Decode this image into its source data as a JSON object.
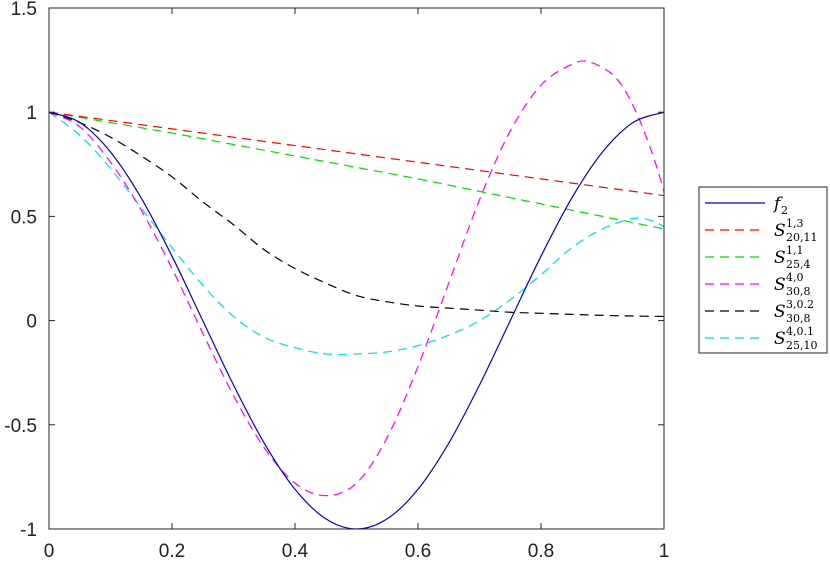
{
  "chart_data": {
    "type": "line",
    "title": "",
    "xlabel": "",
    "ylabel": "",
    "xlim": [
      0,
      1
    ],
    "ylim": [
      -1,
      1.5
    ],
    "xticks": [
      0,
      0.2,
      0.4,
      0.6,
      0.8,
      1
    ],
    "xtick_labels": [
      "0",
      "0.2",
      "0.4",
      "0.6",
      "0.8",
      "1"
    ],
    "yticks": [
      -1,
      -0.5,
      0,
      0.5,
      1,
      1.5
    ],
    "ytick_labels": [
      "-1",
      "-0.5",
      "0",
      "0.5",
      "1",
      "1.5"
    ],
    "grid": false,
    "legend_position": "outside-right",
    "series": [
      {
        "name": "f",
        "sub": "2",
        "sup": "",
        "color": "#0000cc",
        "dash": "solid",
        "x": [
          0,
          0.05,
          0.1,
          0.15,
          0.2,
          0.25,
          0.3,
          0.35,
          0.4,
          0.45,
          0.5,
          0.55,
          0.6,
          0.65,
          0.7,
          0.75,
          0.8,
          0.85,
          0.9,
          0.95,
          1
        ],
        "y": [
          1,
          0.951,
          0.809,
          0.588,
          0.309,
          0,
          -0.309,
          -0.588,
          -0.809,
          -0.951,
          -1,
          -0.951,
          -0.809,
          -0.588,
          -0.309,
          0,
          0.309,
          0.588,
          0.809,
          0.951,
          1
        ]
      },
      {
        "name": "S",
        "sub": "20,11",
        "sup": "1,3",
        "color": "#ff0000",
        "dash": "dashed",
        "x": [
          0,
          0.1,
          0.2,
          0.3,
          0.4,
          0.5,
          0.6,
          0.7,
          0.8,
          0.9,
          1
        ],
        "y": [
          1,
          0.96,
          0.92,
          0.88,
          0.84,
          0.8,
          0.76,
          0.72,
          0.68,
          0.64,
          0.6
        ]
      },
      {
        "name": "S",
        "sub": "25,4",
        "sup": "1,1",
        "color": "#00dd00",
        "dash": "dashed",
        "x": [
          0,
          0.1,
          0.2,
          0.3,
          0.4,
          0.5,
          0.6,
          0.7,
          0.8,
          0.9,
          1
        ],
        "y": [
          1,
          0.95,
          0.9,
          0.845,
          0.79,
          0.735,
          0.68,
          0.62,
          0.56,
          0.5,
          0.44
        ]
      },
      {
        "name": "S",
        "sub": "30,8",
        "sup": "4,0",
        "color": "#ff00ff",
        "dash": "dashed",
        "x": [
          0,
          0.05,
          0.1,
          0.15,
          0.2,
          0.25,
          0.3,
          0.35,
          0.4,
          0.45,
          0.5,
          0.55,
          0.6,
          0.65,
          0.7,
          0.75,
          0.8,
          0.85,
          0.88,
          0.92,
          0.95,
          0.98,
          1
        ],
        "y": [
          1,
          0.93,
          0.76,
          0.53,
          0.25,
          -0.06,
          -0.36,
          -0.61,
          -0.78,
          -0.84,
          -0.78,
          -0.56,
          -0.22,
          0.18,
          0.58,
          0.91,
          1.13,
          1.23,
          1.24,
          1.17,
          1.03,
          0.81,
          0.62
        ]
      },
      {
        "name": "S",
        "sub": "30,8",
        "sup": "3,0.2",
        "color": "#000000",
        "dash": "dashed",
        "x": [
          0,
          0.05,
          0.1,
          0.15,
          0.2,
          0.25,
          0.3,
          0.35,
          0.4,
          0.45,
          0.5,
          0.55,
          0.6,
          0.65,
          0.7,
          0.75,
          0.8,
          0.85,
          0.9,
          0.95,
          1
        ],
        "y": [
          1,
          0.95,
          0.88,
          0.79,
          0.69,
          0.57,
          0.46,
          0.34,
          0.25,
          0.18,
          0.12,
          0.09,
          0.07,
          0.06,
          0.05,
          0.04,
          0.035,
          0.03,
          0.025,
          0.022,
          0.02
        ]
      },
      {
        "name": "S",
        "sub": "25,10",
        "sup": "4,0.1",
        "color": "#00dddd",
        "dash": "dashed",
        "x": [
          0,
          0.05,
          0.1,
          0.15,
          0.2,
          0.25,
          0.3,
          0.35,
          0.4,
          0.45,
          0.5,
          0.55,
          0.6,
          0.65,
          0.7,
          0.75,
          0.8,
          0.85,
          0.9,
          0.95,
          0.98,
          1
        ],
        "y": [
          1,
          0.89,
          0.73,
          0.54,
          0.35,
          0.17,
          0.02,
          -0.08,
          -0.13,
          -0.16,
          -0.16,
          -0.15,
          -0.12,
          -0.07,
          0.0,
          0.1,
          0.22,
          0.35,
          0.44,
          0.49,
          0.48,
          0.45
        ]
      }
    ]
  }
}
